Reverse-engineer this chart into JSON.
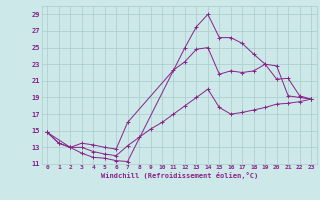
{
  "xlabel": "Windchill (Refroidissement éolien,°C)",
  "background_color": "#cce8e8",
  "line_color": "#882288",
  "grid_color": "#aacccc",
  "xlim": [
    -0.5,
    23.5
  ],
  "ylim": [
    11,
    30
  ],
  "xticks": [
    0,
    1,
    2,
    3,
    4,
    5,
    6,
    7,
    8,
    9,
    10,
    11,
    12,
    13,
    14,
    15,
    16,
    17,
    18,
    19,
    20,
    21,
    22,
    23
  ],
  "yticks": [
    11,
    13,
    15,
    17,
    19,
    21,
    23,
    25,
    27,
    29
  ],
  "line1_x": [
    0,
    1,
    2,
    3,
    4,
    5,
    6,
    7,
    12,
    13,
    14,
    15,
    16,
    17,
    18,
    19,
    20,
    21,
    22,
    23
  ],
  "line1_y": [
    14.8,
    13.5,
    13.0,
    12.3,
    11.8,
    11.7,
    11.4,
    11.3,
    25.0,
    27.5,
    29.0,
    26.2,
    26.2,
    25.5,
    24.2,
    23.0,
    22.8,
    19.2,
    19.0,
    18.8
  ],
  "line2_x": [
    0,
    2,
    3,
    4,
    5,
    6,
    7,
    11,
    12,
    13,
    14,
    15,
    16,
    17,
    18,
    19,
    20,
    21,
    22,
    23
  ],
  "line2_y": [
    14.8,
    13.0,
    13.5,
    13.3,
    13.0,
    12.8,
    16.0,
    22.3,
    23.3,
    24.8,
    25.0,
    21.8,
    22.2,
    22.0,
    22.2,
    23.0,
    21.2,
    21.3,
    19.2,
    18.8
  ],
  "line3_x": [
    0,
    1,
    2,
    3,
    4,
    5,
    6,
    7,
    8,
    9,
    10,
    11,
    12,
    13,
    14,
    15,
    16,
    17,
    18,
    19,
    20,
    21,
    22,
    23
  ],
  "line3_y": [
    14.8,
    13.5,
    13.0,
    13.0,
    12.5,
    12.2,
    12.0,
    13.2,
    14.2,
    15.2,
    16.0,
    17.0,
    18.0,
    19.0,
    20.0,
    17.8,
    17.0,
    17.2,
    17.5,
    17.8,
    18.2,
    18.3,
    18.5,
    18.8
  ]
}
